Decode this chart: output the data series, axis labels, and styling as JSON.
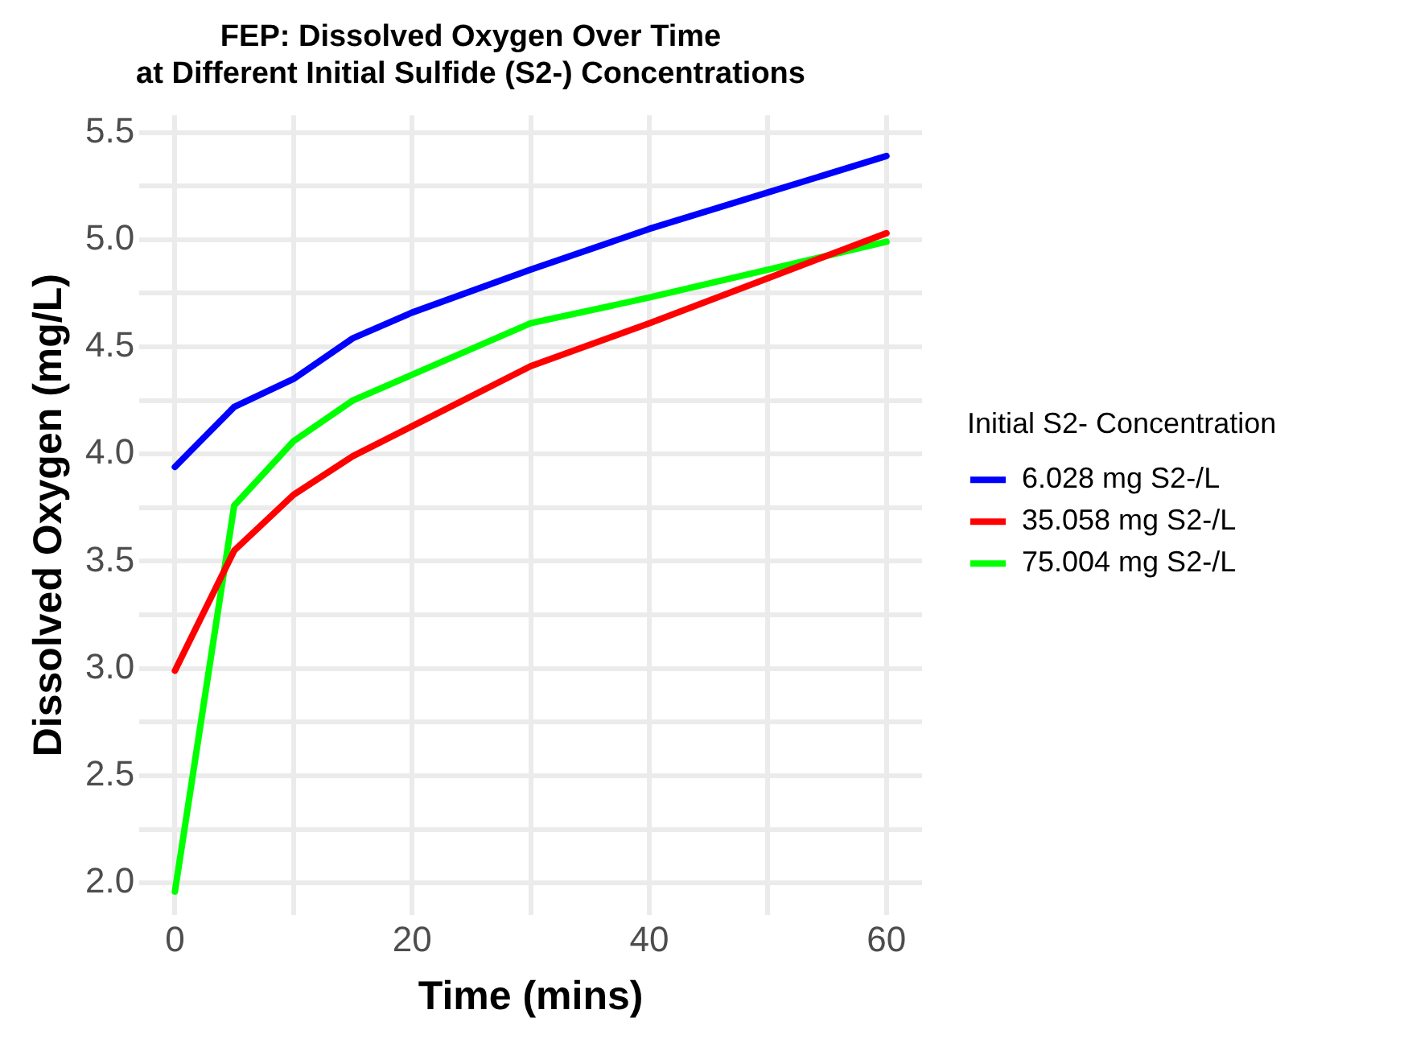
{
  "chart_data": {
    "type": "line",
    "title": "FEP: Dissolved Oxygen Over Time\nat Different Initial Sulfide (S2-) Concentrations",
    "xlabel": "Time (mins)",
    "ylabel": "Dissolved Oxygen (mg/L)",
    "legend_title": "Initial S2- Concentration",
    "legend": "right",
    "grid": true,
    "marker": "none",
    "line_style": "solid",
    "x": [
      0,
      5,
      10,
      15,
      20,
      30,
      40,
      50,
      60
    ],
    "xlim": [
      -3,
      63
    ],
    "xticks": [
      0,
      {
        "value": 10,
        "label": null
      },
      20,
      {
        "value": 30,
        "label": null
      },
      40,
      {
        "value": 50,
        "label": null
      },
      60
    ],
    "ylim": [
      1.85,
      5.58
    ],
    "yticks": [
      {
        "value": 2,
        "label": "2.0"
      },
      {
        "value": 2.25,
        "label": null
      },
      {
        "value": 2.5,
        "label": "2.5"
      },
      {
        "value": 2.75,
        "label": null
      },
      {
        "value": 3,
        "label": "3.0"
      },
      {
        "value": 3.25,
        "label": null
      },
      {
        "value": 3.5,
        "label": "3.5"
      },
      {
        "value": 3.75,
        "label": null
      },
      {
        "value": 4,
        "label": "4.0"
      },
      {
        "value": 4.25,
        "label": null
      },
      {
        "value": 4.5,
        "label": "4.5"
      },
      {
        "value": 4.75,
        "label": null
      },
      {
        "value": 5,
        "label": "5.0"
      },
      {
        "value": 5.25,
        "label": null
      },
      {
        "value": 5.5,
        "label": "5.5"
      }
    ],
    "series": [
      {
        "name": "6.028 mg S2-/L",
        "color": "#0000ff",
        "values": [
          3.94,
          4.22,
          4.35,
          4.54,
          4.66,
          4.86,
          5.05,
          5.22,
          5.39
        ]
      },
      {
        "name": "35.058 mg S2-/L",
        "color": "#ff0000",
        "values": [
          2.99,
          3.55,
          3.81,
          3.99,
          4.13,
          4.41,
          4.61,
          4.82,
          5.03
        ]
      },
      {
        "name": "75.004 mg S2-/L",
        "color": "#00ff00",
        "values": [
          1.96,
          3.76,
          4.06,
          4.25,
          4.37,
          4.61,
          4.73,
          4.86,
          4.99
        ]
      }
    ]
  }
}
